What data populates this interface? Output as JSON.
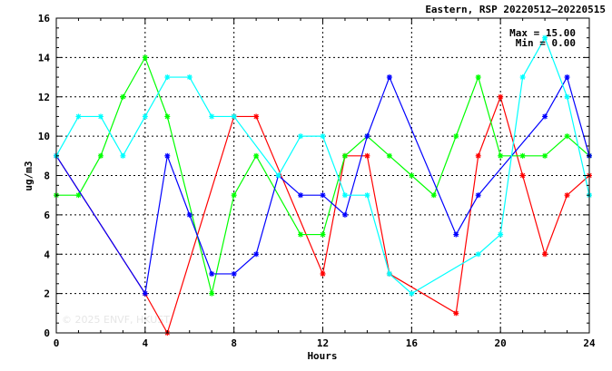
{
  "chart_data": {
    "type": "line",
    "title": "Eastern, RSP 20220512–20220515",
    "xlabel": "Hours",
    "ylabel": "ug/m3",
    "xlim": [
      0,
      24
    ],
    "ylim": [
      0,
      16
    ],
    "xticks": [
      0,
      4,
      8,
      12,
      16,
      20,
      24
    ],
    "yticks": [
      0,
      2,
      4,
      6,
      8,
      10,
      12,
      14,
      16
    ],
    "grid": true,
    "annotation": {
      "max_label": "Max = 15.00",
      "min_label": "Min =  0.00"
    },
    "watermark": "© 2025  ENVF, HKUST",
    "series": [
      {
        "color": "#ff0000",
        "points": [
          [
            0,
            9
          ],
          [
            4,
            2
          ],
          [
            5,
            0
          ],
          [
            8,
            11
          ],
          [
            9,
            11
          ],
          [
            12,
            3
          ],
          [
            13,
            9
          ],
          [
            14,
            9
          ],
          [
            15,
            3
          ],
          [
            18,
            1
          ],
          [
            19,
            9
          ],
          [
            20,
            12
          ],
          [
            21,
            8
          ],
          [
            22,
            4
          ],
          [
            23,
            7
          ],
          [
            24,
            8
          ]
        ]
      },
      {
        "color": "#00ff00",
        "points": [
          [
            0,
            7
          ],
          [
            1,
            7
          ],
          [
            2,
            9
          ],
          [
            3,
            12
          ],
          [
            4,
            14
          ],
          [
            5,
            11
          ],
          [
            7,
            2
          ],
          [
            8,
            7
          ],
          [
            9,
            9
          ],
          [
            11,
            5
          ],
          [
            12,
            5
          ],
          [
            13,
            9
          ],
          [
            14,
            10
          ],
          [
            15,
            9
          ],
          [
            16,
            8
          ],
          [
            17,
            7
          ],
          [
            18,
            10
          ],
          [
            19,
            13
          ],
          [
            20,
            9
          ],
          [
            21,
            9
          ],
          [
            22,
            9
          ],
          [
            23,
            10
          ],
          [
            24,
            9
          ]
        ]
      },
      {
        "color": "#0000ff",
        "points": [
          [
            0,
            9
          ],
          [
            4,
            2
          ],
          [
            5,
            9
          ],
          [
            6,
            6
          ],
          [
            7,
            3
          ],
          [
            8,
            3
          ],
          [
            9,
            4
          ],
          [
            10,
            8
          ],
          [
            11,
            7
          ],
          [
            12,
            7
          ],
          [
            13,
            6
          ],
          [
            14,
            10
          ],
          [
            15,
            13
          ],
          [
            18,
            5
          ],
          [
            19,
            7
          ],
          [
            22,
            11
          ],
          [
            23,
            13
          ],
          [
            24,
            9
          ]
        ]
      },
      {
        "color": "#00ffff",
        "points": [
          [
            0,
            9
          ],
          [
            1,
            11
          ],
          [
            2,
            11
          ],
          [
            3,
            9
          ],
          [
            4,
            11
          ],
          [
            5,
            13
          ],
          [
            6,
            13
          ],
          [
            7,
            11
          ],
          [
            8,
            11
          ],
          [
            10,
            8
          ],
          [
            11,
            10
          ],
          [
            12,
            10
          ],
          [
            13,
            7
          ],
          [
            14,
            7
          ],
          [
            15,
            3
          ],
          [
            16,
            2
          ],
          [
            19,
            4
          ],
          [
            20,
            5
          ],
          [
            21,
            13
          ],
          [
            22,
            15
          ],
          [
            23,
            12
          ],
          [
            24,
            7
          ]
        ]
      }
    ]
  }
}
